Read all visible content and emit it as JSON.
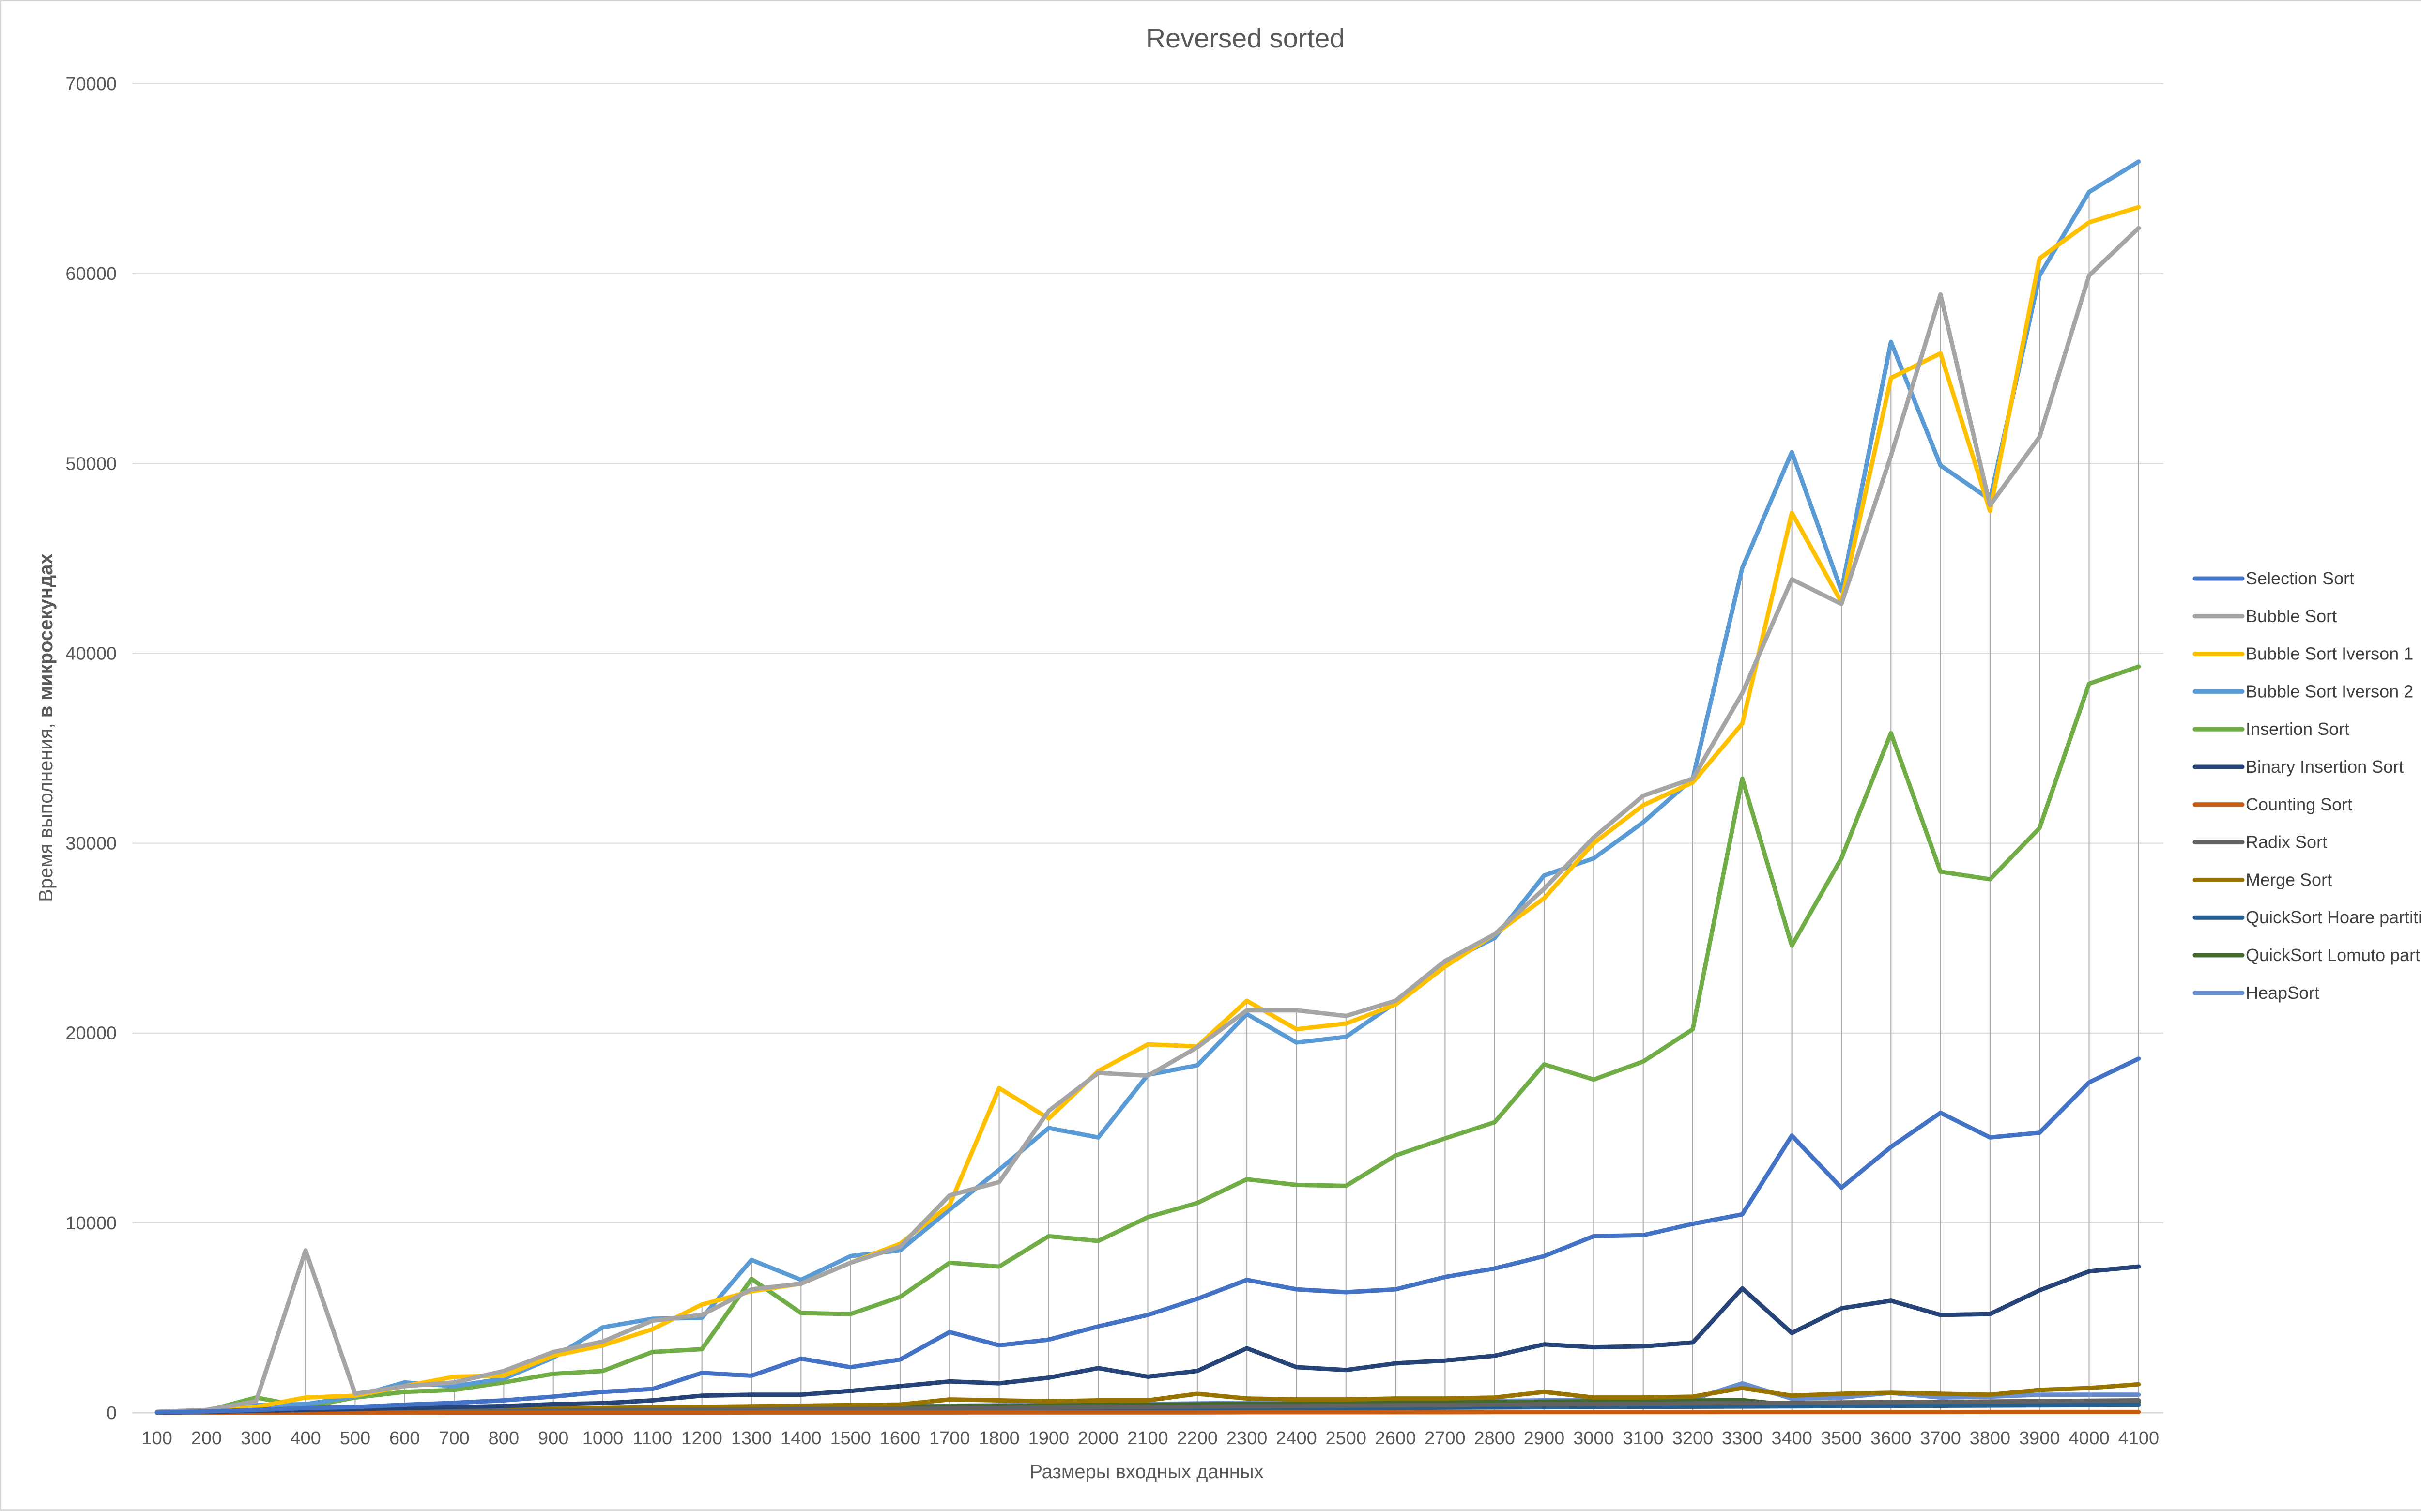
{
  "chart_data": {
    "type": "line",
    "title": "Reversed sorted",
    "xlabel": "Размеры  входных данных",
    "ylabel_regular": "Время выполнения, ",
    "ylabel_bold": "в микросекундах",
    "ylim": [
      0,
      70000
    ],
    "yticks": [
      "0",
      "10000",
      "20000",
      "30000",
      "40000",
      "50000",
      "60000",
      "70000"
    ],
    "grid": "horizontal major gridlines; vertical drop lines at each category",
    "legend_position": "right",
    "categories": [
      "100",
      "200",
      "300",
      "400",
      "500",
      "600",
      "700",
      "800",
      "900",
      "1000",
      "1100",
      "1200",
      "1300",
      "1400",
      "1500",
      "1600",
      "1700",
      "1800",
      "1900",
      "2000",
      "2100",
      "2200",
      "2300",
      "2400",
      "2500",
      "2600",
      "2700",
      "2800",
      "2900",
      "3000",
      "3100",
      "3200",
      "3300",
      "3400",
      "3500",
      "3600",
      "3700",
      "3800",
      "3900",
      "4000",
      "4100"
    ],
    "series": [
      {
        "name": "Selection Sort",
        "color": "#4472C4",
        "values": [
          20,
          70,
          150,
          250,
          300,
          420,
          520,
          650,
          850,
          1100,
          1250,
          2100,
          1950,
          2850,
          2400,
          2800,
          4250,
          3550,
          3850,
          4550,
          5150,
          6000,
          7000,
          6500,
          6350,
          6500,
          7150,
          7600,
          8250,
          9300,
          9350,
          9950,
          10450,
          14600,
          11850,
          14000,
          15800,
          14500,
          14750,
          17400,
          18650
        ]
      },
      {
        "name": "Bubble Sort",
        "color": "#A5A5A5",
        "values": [
          50,
          150,
          600,
          8550,
          1000,
          1400,
          1600,
          2200,
          3200,
          3750,
          4850,
          5150,
          6500,
          6800,
          7900,
          8750,
          11450,
          12150,
          15900,
          17900,
          17750,
          19250,
          21200,
          21200,
          20900,
          21700,
          23800,
          25200,
          27600,
          30300,
          32500,
          33400,
          37900,
          43900,
          42600,
          50400,
          58900,
          47800,
          51400,
          59900,
          62400
        ]
      },
      {
        "name": "Bubble Sort Iverson 1",
        "color": "#FFC000",
        "values": [
          50,
          100,
          300,
          800,
          900,
          1400,
          1900,
          1950,
          3000,
          3550,
          4400,
          5700,
          6400,
          6800,
          7900,
          8900,
          10950,
          17100,
          15500,
          18000,
          19400,
          19300,
          21700,
          20200,
          20500,
          21500,
          23500,
          25200,
          27100,
          30000,
          32000,
          33200,
          36300,
          47400,
          42700,
          54500,
          55800,
          47500,
          60800,
          62700,
          63500
        ]
      },
      {
        "name": "Bubble Sort Iverson 2",
        "color": "#5B9BD5",
        "values": [
          50,
          100,
          400,
          450,
          850,
          1600,
          1400,
          1800,
          2900,
          4500,
          4950,
          5000,
          8050,
          7000,
          8250,
          8550,
          10700,
          12800,
          15000,
          14500,
          17800,
          18300,
          21000,
          19500,
          19800,
          21600,
          23700,
          25000,
          28300,
          29200,
          31100,
          33400,
          44500,
          50600,
          43300,
          56400,
          49900,
          48100,
          59900,
          64300,
          65900
        ]
      },
      {
        "name": "Insertion Sort",
        "color": "#70AD47",
        "values": [
          30,
          100,
          800,
          300,
          800,
          1100,
          1200,
          1600,
          2050,
          2200,
          3200,
          3350,
          7050,
          5250,
          5200,
          6100,
          7900,
          7700,
          9300,
          9050,
          10300,
          11050,
          12300,
          12000,
          11950,
          13550,
          14450,
          15300,
          18350,
          17550,
          18500,
          20200,
          33400,
          24600,
          29200,
          35800,
          28500,
          28100,
          30800,
          38400,
          39300
        ]
      },
      {
        "name": "Binary Insertion Sort",
        "color": "#264478",
        "values": [
          10,
          50,
          100,
          150,
          200,
          250,
          300,
          350,
          450,
          500,
          650,
          900,
          950,
          950,
          1150,
          1400,
          1650,
          1550,
          1850,
          2350,
          1900,
          2200,
          3400,
          2400,
          2250,
          2600,
          2750,
          3000,
          3600,
          3450,
          3500,
          3700,
          6550,
          4200,
          5500,
          5900,
          5150,
          5200,
          6450,
          7450,
          7700
        ]
      },
      {
        "name": "Counting Sort",
        "color": "#C55A11",
        "values": [
          5,
          5,
          5,
          5,
          5,
          5,
          10,
          10,
          10,
          10,
          10,
          10,
          15,
          15,
          15,
          15,
          15,
          20,
          20,
          20,
          20,
          20,
          25,
          25,
          25,
          25,
          25,
          30,
          30,
          30,
          30,
          30,
          35,
          35,
          35,
          35,
          35,
          40,
          40,
          40,
          40
        ]
      },
      {
        "name": "Radix Sort",
        "color": "#636363",
        "values": [
          10,
          20,
          30,
          50,
          60,
          70,
          80,
          100,
          110,
          130,
          140,
          160,
          170,
          190,
          200,
          220,
          240,
          250,
          270,
          290,
          300,
          320,
          340,
          350,
          370,
          390,
          400,
          420,
          440,
          450,
          470,
          490,
          500,
          520,
          540,
          560,
          570,
          590,
          610,
          630,
          650
        ]
      },
      {
        "name": "Merge Sort",
        "color": "#997300",
        "values": [
          20,
          40,
          60,
          90,
          110,
          140,
          160,
          190,
          220,
          250,
          280,
          310,
          340,
          370,
          400,
          430,
          700,
          650,
          600,
          650,
          650,
          1000,
          750,
          700,
          700,
          750,
          750,
          800,
          1100,
          800,
          800,
          850,
          1300,
          900,
          1000,
          1050,
          1000,
          950,
          1200,
          1300,
          1500
        ]
      },
      {
        "name": "QuickSort Hoare partition",
        "color": "#255E91",
        "values": [
          10,
          20,
          30,
          40,
          50,
          60,
          70,
          80,
          90,
          100,
          110,
          120,
          130,
          140,
          150,
          160,
          170,
          180,
          190,
          200,
          210,
          220,
          230,
          240,
          250,
          260,
          270,
          280,
          290,
          300,
          310,
          320,
          330,
          340,
          350,
          360,
          370,
          380,
          390,
          400,
          410
        ]
      },
      {
        "name": "QuickSort Lomuto partition",
        "color": "#43682B",
        "values": [
          20,
          40,
          60,
          80,
          100,
          120,
          140,
          160,
          180,
          200,
          220,
          240,
          260,
          280,
          300,
          320,
          340,
          360,
          380,
          400,
          420,
          440,
          460,
          480,
          500,
          520,
          540,
          560,
          580,
          600,
          620,
          640,
          660,
          400,
          450,
          550,
          500,
          450,
          500,
          550,
          550
        ]
      },
      {
        "name": "HeapSort",
        "color": "#698ED0",
        "values": [
          10,
          30,
          50,
          80,
          100,
          120,
          140,
          170,
          190,
          210,
          240,
          260,
          280,
          300,
          330,
          350,
          370,
          390,
          420,
          440,
          460,
          490,
          510,
          530,
          550,
          580,
          600,
          620,
          650,
          670,
          690,
          710,
          1550,
          740,
          800,
          1050,
          800,
          850,
          950,
          950,
          950
        ]
      }
    ]
  }
}
